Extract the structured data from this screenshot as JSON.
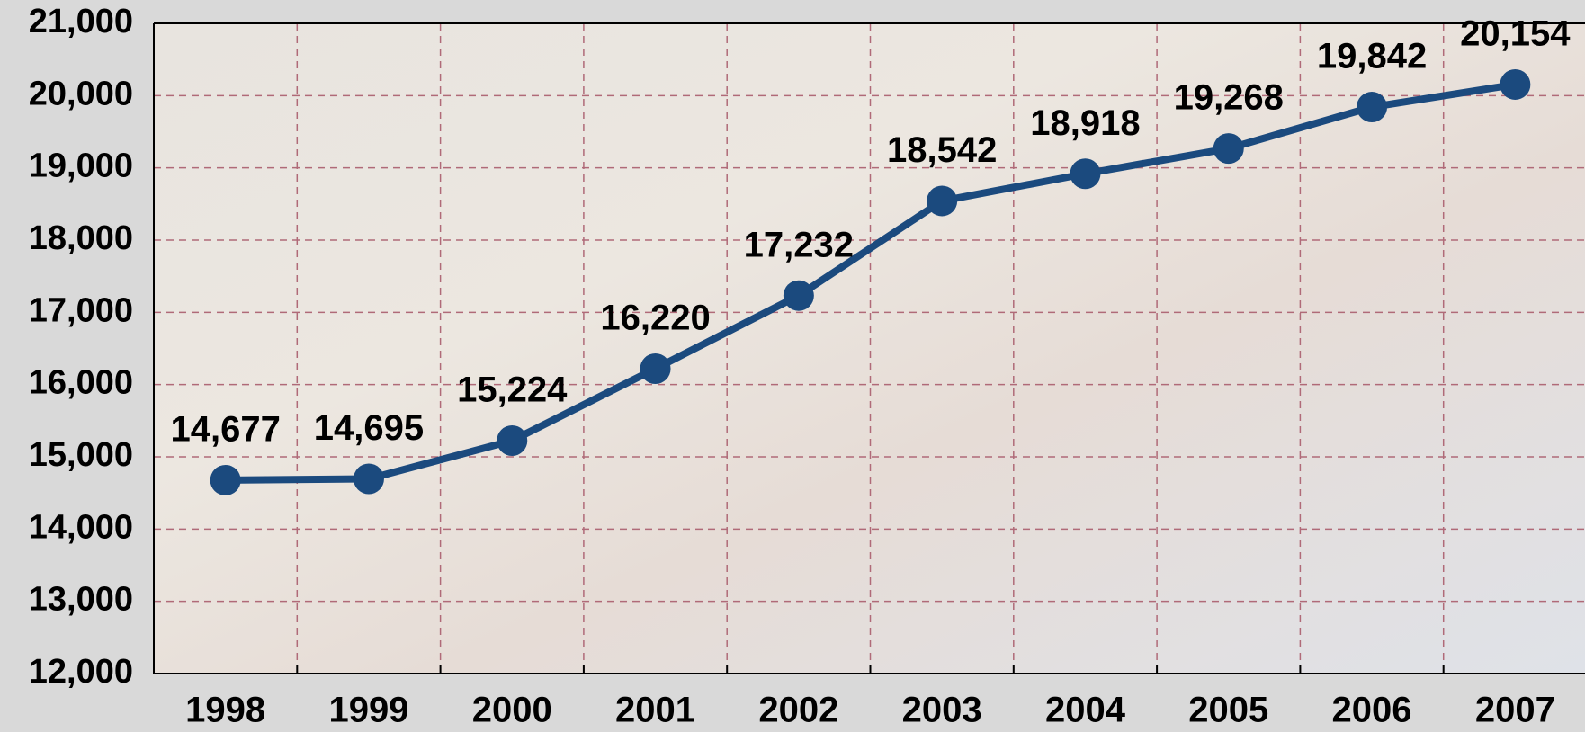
{
  "chart_data": {
    "type": "line",
    "categories": [
      "1998",
      "1999",
      "2000",
      "2001",
      "2002",
      "2003",
      "2004",
      "2005",
      "2006",
      "2007"
    ],
    "series": [
      {
        "color": "#1b4a7e",
        "values": [
          14677,
          14695,
          15224,
          16220,
          17232,
          18542,
          18918,
          19268,
          19842,
          20154
        ],
        "value_labels": [
          "14,677",
          "14,695",
          "15,224",
          "16,220",
          "17,232",
          "18,542",
          "18,918",
          "19,268",
          "19,842",
          "20,154"
        ]
      }
    ],
    "ylim": [
      12000,
      21000
    ],
    "yticks": [
      {
        "value": 12000,
        "label": "12,000"
      },
      {
        "value": 13000,
        "label": "13,000"
      },
      {
        "value": 14000,
        "label": "14,000"
      },
      {
        "value": 15000,
        "label": "15,000"
      },
      {
        "value": 16000,
        "label": "16,000"
      },
      {
        "value": 17000,
        "label": "17,000"
      },
      {
        "value": 18000,
        "label": "18,000"
      },
      {
        "value": 19000,
        "label": "19,000"
      },
      {
        "value": 20000,
        "label": "20,000"
      },
      {
        "value": 21000,
        "label": "21,000"
      }
    ],
    "grid": true
  }
}
